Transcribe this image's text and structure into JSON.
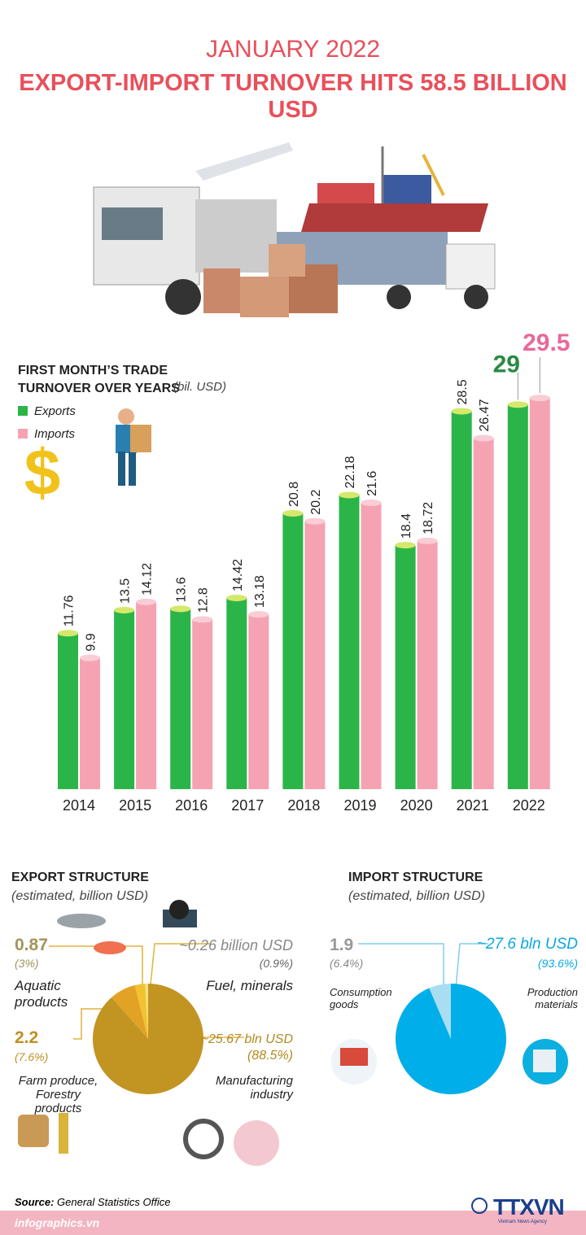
{
  "header": {
    "date": "JANUARY 2022",
    "title": "EXPORT-IMPORT TURNOVER HITS 58.5 BILLION USD"
  },
  "chart_data": [
    {
      "type": "bar",
      "title": "FIRST MONTH’S TRADE TURNOVER OVER YEARS",
      "unit": "(bil. USD)",
      "categories": [
        "2014",
        "2015",
        "2016",
        "2017",
        "2018",
        "2019",
        "2020",
        "2021",
        "2022"
      ],
      "series": [
        {
          "name": "Exports",
          "color": "#2bb548",
          "values": [
            11.76,
            13.5,
            13.6,
            14.42,
            20.8,
            22.18,
            18.4,
            28.5,
            29
          ]
        },
        {
          "name": "Imports",
          "color": "#f5a3b3",
          "values": [
            9.9,
            14.12,
            12.8,
            13.18,
            20.2,
            21.6,
            18.72,
            26.47,
            29.5
          ]
        }
      ]
    },
    {
      "type": "pie",
      "title": "EXPORT STRUCTURE",
      "subtitle": "(estimated, billion USD)",
      "categories": [
        "Fuel, minerals",
        "Aquatic products",
        "Farm produce, Forestry products",
        "Manufacturing industry"
      ],
      "values": [
        0.26,
        0.87,
        2.2,
        25.67
      ],
      "value_labels": [
        "~0.26 billion USD",
        "0.87",
        "2.2",
        "~25.67 bln USD"
      ],
      "percents": [
        0.9,
        3,
        7.6,
        88.5
      ],
      "percent_labels": [
        "(0.9%)",
        "(3%)",
        "(7.6%)",
        "(88.5%)"
      ],
      "colors": [
        "#f5e27a",
        "#f2c230",
        "#e2a226",
        "#c29422"
      ]
    },
    {
      "type": "pie",
      "title": "IMPORT STRUCTURE",
      "subtitle": "(estimated, billion USD)",
      "categories": [
        "Consumption goods",
        "Production materials"
      ],
      "values": [
        1.9,
        27.6
      ],
      "value_labels": [
        "1.9",
        "~27.6 bln USD"
      ],
      "percents": [
        6.4,
        93.6
      ],
      "percent_labels": [
        "(6.4%)",
        "(93.6%)"
      ],
      "colors": [
        "#a9def2",
        "#00aee9"
      ]
    }
  ],
  "footer": {
    "source_label": "Source:",
    "source": "General Statistics Office",
    "site": "infographics.vn",
    "logo": "TTXVN",
    "agency": "Vietnam News Agency"
  }
}
